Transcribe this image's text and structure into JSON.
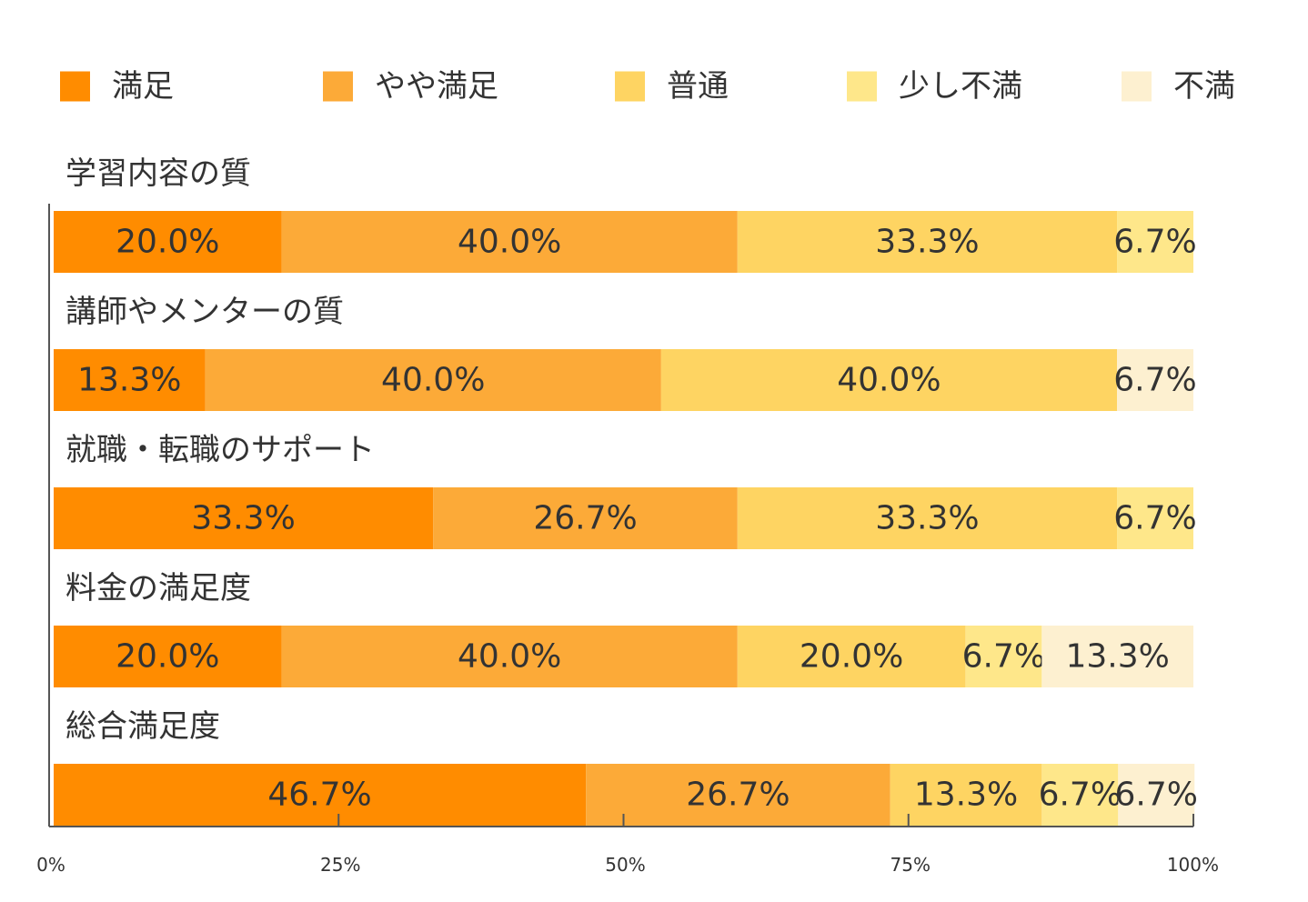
{
  "chart_data": {
    "type": "bar",
    "orientation": "horizontal",
    "stacked": true,
    "legend": {
      "position": "top"
    },
    "grid": false,
    "xlim": [
      0,
      100
    ],
    "x_ticks": [
      "0%",
      "25%",
      "50%",
      "75%",
      "100%"
    ],
    "categories": [
      "学習内容の質",
      "講師やメンターの質",
      "就職・転職のサポート",
      "料金の満足度",
      "総合満足度"
    ],
    "series": [
      {
        "name": "満足",
        "color": "#FF8C00",
        "values": [
          20.0,
          13.3,
          33.3,
          20.0,
          46.7
        ],
        "labels": [
          "20.0%",
          "13.3%",
          "33.3%",
          "20.0%",
          "46.7%"
        ]
      },
      {
        "name": "やや満足",
        "color": "#FCAA38",
        "values": [
          40.0,
          40.0,
          26.7,
          40.0,
          26.7
        ],
        "labels": [
          "40.0%",
          "40.0%",
          "26.7%",
          "40.0%",
          "26.7%"
        ]
      },
      {
        "name": "普通",
        "color": "#FED462",
        "values": [
          33.3,
          40.0,
          33.3,
          20.0,
          13.3
        ],
        "labels": [
          "33.3%",
          "40.0%",
          "33.3%",
          "20.0%",
          "13.3%"
        ]
      },
      {
        "name": "少し不満",
        "color": "#FEE78A",
        "values": [
          6.7,
          0,
          6.7,
          6.7,
          6.7
        ],
        "labels": [
          "6.7%",
          "",
          "6.7%",
          "6.7%",
          "6.7%"
        ]
      },
      {
        "name": "不満",
        "color": "#FDF0D0",
        "values": [
          0,
          6.7,
          0,
          13.3,
          6.7
        ],
        "labels": [
          "",
          "6.7%",
          "",
          "13.3%",
          "6.7%"
        ]
      }
    ]
  }
}
